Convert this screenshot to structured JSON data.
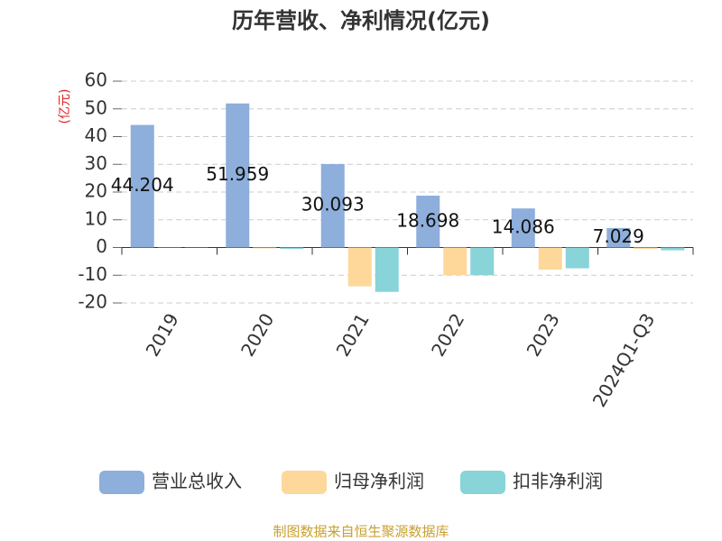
{
  "chart_data": {
    "type": "bar",
    "title": "历年营收、净利情况(亿元)",
    "y_unit": "(亿元)",
    "categories": [
      "2019",
      "2020",
      "2021",
      "2022",
      "2023",
      "2024Q1-Q3"
    ],
    "series": [
      {
        "name": "营业总收入",
        "color": "#8eaedb",
        "values": [
          44.204,
          51.959,
          30.093,
          18.698,
          14.086,
          7.029
        ],
        "show_value_labels": true
      },
      {
        "name": "归母净利润",
        "color": "#fdd89a",
        "values": [
          0.1,
          -0.3,
          -14,
          -10,
          -8,
          -0.5
        ]
      },
      {
        "name": "扣非净利润",
        "color": "#88d4d8",
        "values": [
          -0.1,
          -0.5,
          -16,
          -10,
          -7.5,
          -1
        ]
      }
    ],
    "ylim": [
      -20,
      60
    ],
    "yticks": [
      -20,
      -10,
      0,
      10,
      20,
      30,
      40,
      50,
      60
    ],
    "grid": true,
    "source": "制图数据来自恒生聚源数据库"
  }
}
